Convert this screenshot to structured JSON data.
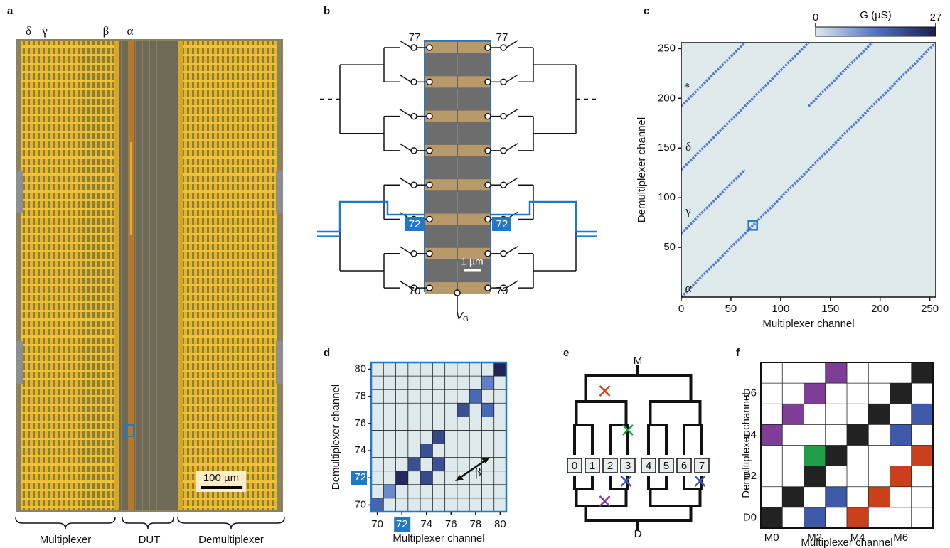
{
  "panel_labels": [
    "a",
    "b",
    "c",
    "d",
    "e",
    "f"
  ],
  "panel_a": {
    "markers": [
      "δ",
      "γ",
      "β",
      "α"
    ],
    "scale_bar": "100 µm",
    "regions": [
      "Multiplexer",
      "DUT",
      "Demultiplexer"
    ]
  },
  "panel_b": {
    "top_labels": [
      "77",
      "77"
    ],
    "highlight_labels": [
      "72",
      "72"
    ],
    "bottom_labels": [
      "70",
      "70"
    ],
    "scale_bar": "1 µm",
    "gate": {
      "symbol": "V",
      "subscript": "G"
    }
  },
  "panel_e": {
    "top": "M",
    "bottom": "D",
    "devices": [
      "0",
      "1",
      "2",
      "3",
      "4",
      "5",
      "6",
      "7"
    ]
  },
  "chart_data": [
    {
      "type": "map",
      "xlabel": "Multiplexer channel",
      "ylabel": "Demultiplexer channel",
      "xlim": [
        0,
        256
      ],
      "ylim": [
        0,
        256
      ],
      "xticks": [
        0,
        50,
        100,
        150,
        200,
        250
      ],
      "yticks": [
        50,
        100,
        150,
        200,
        250
      ],
      "colorbar": {
        "label": "G (µS)",
        "clim": [
          0,
          27
        ],
        "ticks": [
          0,
          27
        ]
      },
      "line_color": "#5a78c6",
      "lines": [
        {
          "x": [
            0,
            255
          ],
          "y": [
            0,
            255
          ]
        },
        {
          "x": [
            0,
            64
          ],
          "y": [
            64,
            128
          ]
        },
        {
          "x": [
            0,
            128
          ],
          "y": [
            128,
            256
          ]
        },
        {
          "x": [
            0,
            64
          ],
          "y": [
            192,
            256
          ]
        },
        {
          "x": [
            128,
            192
          ],
          "y": [
            192,
            256
          ]
        }
      ],
      "annotations": [
        "*",
        "δ",
        "γ",
        "α"
      ],
      "highlight": {
        "x": 72,
        "y": 72
      }
    },
    {
      "type": "grid",
      "xlabel": "Multiplexer channel",
      "ylabel": "Demultiplexer channel",
      "xlim": [
        69.5,
        80.5
      ],
      "ylim": [
        69.5,
        80.5
      ],
      "xticks": [
        70,
        72,
        74,
        76,
        78,
        80
      ],
      "yticks": [
        70,
        72,
        74,
        76,
        78,
        80
      ],
      "highlight_tick": 72,
      "annotation": "β",
      "clim": [
        0,
        27
      ],
      "cells": [
        {
          "x": 70,
          "y": 70,
          "value": 16
        },
        {
          "x": 71,
          "y": 71,
          "value": 11
        },
        {
          "x": 72,
          "y": 72,
          "value": 25
        },
        {
          "x": 74,
          "y": 72,
          "value": 20
        },
        {
          "x": 73,
          "y": 73,
          "value": 19
        },
        {
          "x": 75,
          "y": 73,
          "value": 19
        },
        {
          "x": 74,
          "y": 74,
          "value": 19
        },
        {
          "x": 75,
          "y": 75,
          "value": 20
        },
        {
          "x": 77,
          "y": 77,
          "value": 19
        },
        {
          "x": 78,
          "y": 78,
          "value": 15
        },
        {
          "x": 79,
          "y": 77,
          "value": 15
        },
        {
          "x": 79,
          "y": 79,
          "value": 12
        },
        {
          "x": 80,
          "y": 80,
          "value": 26
        }
      ]
    },
    {
      "type": "category-grid",
      "xlabel": "Multiplexer channel",
      "ylabel": "Demultiplexer channel",
      "categories": [
        "M0",
        null,
        "M2",
        null,
        "M4",
        null,
        "M6",
        null
      ],
      "rows": [
        "D0",
        null,
        "D2",
        null,
        "D4",
        null,
        "D6",
        null
      ],
      "cells": [
        {
          "x": 0,
          "y": 0,
          "color": "#222222"
        },
        {
          "x": 2,
          "y": 0,
          "color": "#3d59a8"
        },
        {
          "x": 4,
          "y": 0,
          "color": "#c9401a"
        },
        {
          "x": 1,
          "y": 1,
          "color": "#222222"
        },
        {
          "x": 3,
          "y": 1,
          "color": "#3d59a8"
        },
        {
          "x": 5,
          "y": 1,
          "color": "#c9401a"
        },
        {
          "x": 2,
          "y": 2,
          "color": "#222222"
        },
        {
          "x": 6,
          "y": 2,
          "color": "#c9401a"
        },
        {
          "x": 2,
          "y": 3,
          "color": "#1f9e47"
        },
        {
          "x": 3,
          "y": 3,
          "color": "#222222"
        },
        {
          "x": 7,
          "y": 3,
          "color": "#c9401a"
        },
        {
          "x": 0,
          "y": 4,
          "color": "#7e3e98"
        },
        {
          "x": 4,
          "y": 4,
          "color": "#222222"
        },
        {
          "x": 6,
          "y": 4,
          "color": "#3d59a8"
        },
        {
          "x": 1,
          "y": 5,
          "color": "#7e3e98"
        },
        {
          "x": 5,
          "y": 5,
          "color": "#222222"
        },
        {
          "x": 7,
          "y": 5,
          "color": "#3d59a8"
        },
        {
          "x": 2,
          "y": 6,
          "color": "#7e3e98"
        },
        {
          "x": 6,
          "y": 6,
          "color": "#222222"
        },
        {
          "x": 3,
          "y": 7,
          "color": "#7e3e98"
        },
        {
          "x": 7,
          "y": 7,
          "color": "#222222"
        }
      ]
    }
  ]
}
